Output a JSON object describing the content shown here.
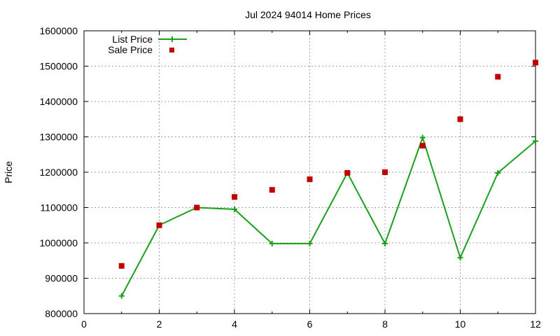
{
  "chart_data": {
    "type": "line",
    "title": "Jul 2024 94014 Home Prices",
    "xlabel": "",
    "ylabel": "Price",
    "xlim": [
      0,
      12
    ],
    "ylim": [
      800000,
      1600000
    ],
    "x_ticks": [
      "0",
      "2",
      "4",
      "6",
      "8",
      "10",
      "12"
    ],
    "y_ticks": [
      "800000",
      "900000",
      "1000000",
      "1100000",
      "1200000",
      "1300000",
      "1400000",
      "1500000",
      "1600000"
    ],
    "grid": true,
    "legend_position": "top-left",
    "series": [
      {
        "name": "List Price",
        "style": "line+points",
        "color": "#1aa01a",
        "x": [
          1,
          2,
          3,
          4,
          5,
          6,
          7,
          8,
          9,
          10,
          11,
          12
        ],
        "y": [
          850000,
          1050000,
          1100000,
          1095000,
          998000,
          998000,
          1198000,
          998000,
          1298000,
          958000,
          1198000,
          1288000
        ]
      },
      {
        "name": "Sale Price",
        "style": "points",
        "color": "#c00000",
        "x": [
          1,
          2,
          3,
          4,
          5,
          6,
          7,
          8,
          9,
          10,
          11,
          12
        ],
        "y": [
          935000,
          1050000,
          1100000,
          1130000,
          1150000,
          1180000,
          1198000,
          1200000,
          1275000,
          1350000,
          1470000,
          1510000
        ]
      }
    ]
  }
}
